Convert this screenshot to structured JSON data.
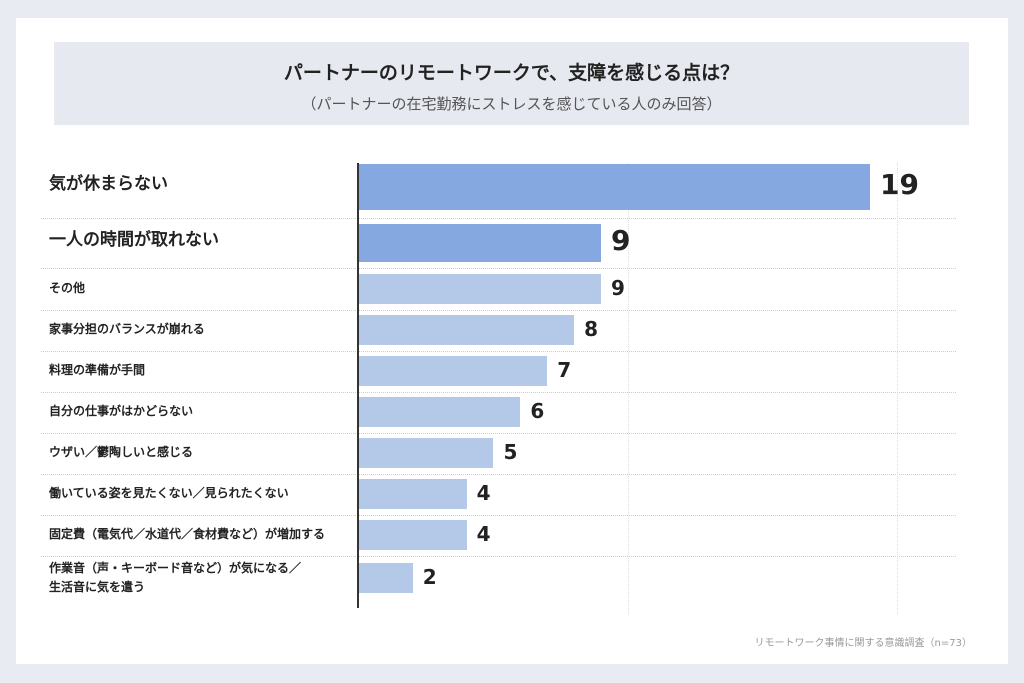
{
  "chart_data": {
    "type": "bar",
    "orientation": "horizontal",
    "title": "パートナーのリモートワークで、支障を感じる点は？",
    "subtitle": "（パートナーの在宅勤務にストレスを感じている人のみ回答）",
    "categories": [
      "気が休まらない",
      "一人の時間が取れない",
      "その他",
      "家事分担のバランスが崩れる",
      "料理の準備が手間",
      "自分の仕事がはかどらない",
      "ウザい／鬱陶しいと感じる",
      "働いている姿を見たくない／見られたくない",
      "固定費（電気代／水道代／食材費など）が増加する",
      "作業音（声・キーボード音など）が気になる／生活音に気を遣う"
    ],
    "values": [
      19,
      9,
      9,
      8,
      7,
      6,
      5,
      4,
      4,
      2
    ],
    "highlight_color": "#86a8e0",
    "bar_color": "#b4c8e8",
    "xlim": [
      0,
      20
    ],
    "grid": true
  },
  "source": "リモートワーク事情に関する意識調査（n=73）"
}
